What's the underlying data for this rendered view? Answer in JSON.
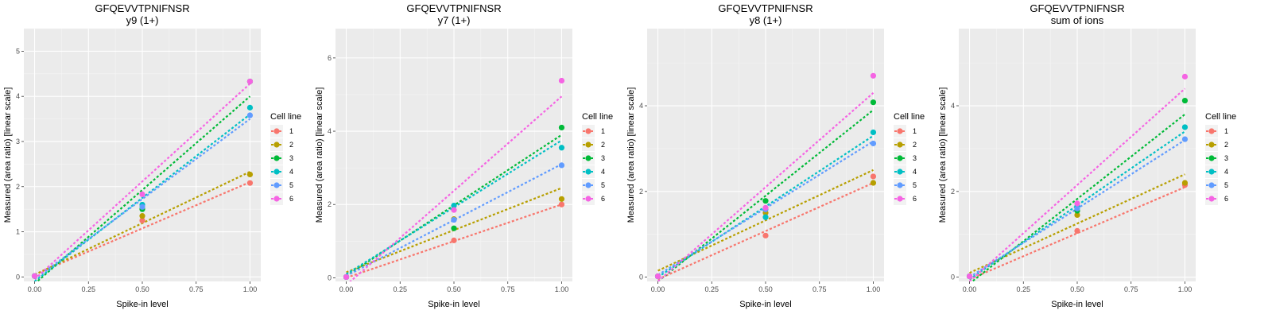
{
  "chart_data": [
    {
      "type": "scatter",
      "title": "GFQEVVTPNIFNSR",
      "subtitle": "y9 (1+)",
      "xlabel": "Spike-in level",
      "ylabel": "Measured (area ratio) [linear scale]",
      "xlim": [
        -0.05,
        1.05
      ],
      "ylim": [
        -0.1,
        5.5
      ],
      "xticks": [
        0,
        0.25,
        0.5,
        0.75,
        1
      ],
      "xtick_labels": [
        "0.00",
        "0.25",
        "0.50",
        "0.75",
        "1.00"
      ],
      "yticks": [
        0,
        1,
        2,
        3,
        4,
        5
      ],
      "ytick_labels": [
        "0",
        "1",
        "2",
        "3",
        "4",
        "5"
      ],
      "legend_title": "Cell line",
      "legend_position": "right",
      "series": [
        {
          "name": "1",
          "color": "#F8766D",
          "points": [
            [
              0,
              0.02
            ],
            [
              0.5,
              1.25
            ],
            [
              1,
              2.08
            ]
          ],
          "fit": [
            0.05,
            2.05
          ]
        },
        {
          "name": "2",
          "color": "#B79F00",
          "points": [
            [
              0,
              0.02
            ],
            [
              0.5,
              1.35
            ],
            [
              1,
              2.27
            ]
          ],
          "fit": [
            0.05,
            2.28
          ]
        },
        {
          "name": "3",
          "color": "#00BA38",
          "points": [
            [
              0,
              0.02
            ],
            [
              0.5,
              1.5
            ],
            [
              1,
              4.33
            ]
          ],
          "fit": [
            -0.15,
            4.15
          ]
        },
        {
          "name": "4",
          "color": "#00BFC4",
          "points": [
            [
              0,
              0.02
            ],
            [
              0.5,
              1.6
            ],
            [
              1,
              3.75
            ]
          ],
          "fit": [
            -0.1,
            3.7
          ]
        },
        {
          "name": "5",
          "color": "#619CFF",
          "points": [
            [
              0,
              0.02
            ],
            [
              0.5,
              1.55
            ],
            [
              1,
              3.58
            ]
          ],
          "fit": [
            -0.05,
            3.55
          ]
        },
        {
          "name": "6",
          "color": "#F564E3",
          "points": [
            [
              0,
              0.02
            ],
            [
              0.5,
              1.83
            ],
            [
              1,
              4.33
            ]
          ],
          "fit": [
            -0.05,
            4.33
          ]
        }
      ]
    },
    {
      "type": "scatter",
      "title": "GFQEVVTPNIFNSR",
      "subtitle": "y7 (1+)",
      "xlabel": "Spike-in level",
      "ylabel": "Measured (area ratio) [linear scale]",
      "xlim": [
        -0.05,
        1.05
      ],
      "ylim": [
        -0.1,
        6.8
      ],
      "xticks": [
        0,
        0.25,
        0.5,
        0.75,
        1
      ],
      "xtick_labels": [
        "0.00",
        "0.25",
        "0.50",
        "0.75",
        "1.00"
      ],
      "yticks": [
        0,
        2,
        4,
        6
      ],
      "ytick_labels": [
        "0",
        "2",
        "4",
        "6"
      ],
      "legend_title": "Cell line",
      "legend_position": "right",
      "series": [
        {
          "name": "1",
          "color": "#F8766D",
          "points": [
            [
              0,
              0.02
            ],
            [
              0.5,
              1.02
            ],
            [
              1,
              2.0
            ]
          ],
          "fit": [
            0.0,
            2.0
          ]
        },
        {
          "name": "2",
          "color": "#B79F00",
          "points": [
            [
              0,
              0.02
            ],
            [
              0.5,
              1.6
            ],
            [
              1,
              2.15
            ]
          ],
          "fit": [
            0.15,
            2.3
          ]
        },
        {
          "name": "3",
          "color": "#00BA38",
          "points": [
            [
              0,
              0.02
            ],
            [
              0.5,
              1.35
            ],
            [
              1,
              4.1
            ]
          ],
          "fit": [
            0.05,
            3.85
          ]
        },
        {
          "name": "4",
          "color": "#00BFC4",
          "points": [
            [
              0,
              0.02
            ],
            [
              0.5,
              1.97
            ],
            [
              1,
              3.55
            ]
          ],
          "fit": [
            0.1,
            3.65
          ]
        },
        {
          "name": "5",
          "color": "#619CFF",
          "points": [
            [
              0,
              0.02
            ],
            [
              0.5,
              1.58
            ],
            [
              1,
              3.07
            ]
          ],
          "fit": [
            0.05,
            3.05
          ]
        },
        {
          "name": "6",
          "color": "#F564E3",
          "points": [
            [
              0,
              0.02
            ],
            [
              0.5,
              1.85
            ],
            [
              1,
              5.38
            ]
          ],
          "fit": [
            -0.2,
            5.15
          ]
        }
      ]
    },
    {
      "type": "scatter",
      "title": "GFQEVVTPNIFNSR",
      "subtitle": "y8 (1+)",
      "xlabel": "Spike-in level",
      "ylabel": "Measured (area ratio) [linear scale]",
      "xlim": [
        -0.05,
        1.05
      ],
      "ylim": [
        -0.1,
        5.8
      ],
      "xticks": [
        0,
        0.25,
        0.5,
        0.75,
        1
      ],
      "xtick_labels": [
        "0.00",
        "0.25",
        "0.50",
        "0.75",
        "1.00"
      ],
      "yticks": [
        0,
        2,
        4
      ],
      "ytick_labels": [
        "0",
        "2",
        "4"
      ],
      "legend_title": "Cell line",
      "legend_position": "right",
      "series": [
        {
          "name": "1",
          "color": "#F8766D",
          "points": [
            [
              0,
              0.02
            ],
            [
              0.5,
              0.97
            ],
            [
              1,
              2.35
            ]
          ],
          "fit": [
            -0.05,
            2.25
          ]
        },
        {
          "name": "2",
          "color": "#B79F00",
          "points": [
            [
              0,
              0.02
            ],
            [
              0.5,
              1.5
            ],
            [
              1,
              2.2
            ]
          ],
          "fit": [
            0.15,
            2.35
          ]
        },
        {
          "name": "3",
          "color": "#00BA38",
          "points": [
            [
              0,
              0.02
            ],
            [
              0.5,
              1.78
            ],
            [
              1,
              4.08
            ]
          ],
          "fit": [
            -0.1,
            4.0
          ]
        },
        {
          "name": "4",
          "color": "#00BFC4",
          "points": [
            [
              0,
              0.02
            ],
            [
              0.5,
              1.4
            ],
            [
              1,
              3.38
            ]
          ],
          "fit": [
            0.0,
            3.3
          ]
        },
        {
          "name": "5",
          "color": "#619CFF",
          "points": [
            [
              0,
              0.02
            ],
            [
              0.5,
              1.58
            ],
            [
              1,
              3.12
            ]
          ],
          "fit": [
            0.05,
            3.12
          ]
        },
        {
          "name": "6",
          "color": "#F564E3",
          "points": [
            [
              0,
              0.02
            ],
            [
              0.5,
              1.62
            ],
            [
              1,
              4.7
            ]
          ],
          "fit": [
            -0.1,
            4.4
          ]
        }
      ]
    },
    {
      "type": "scatter",
      "title": "GFQEVVTPNIFNSR",
      "subtitle": "sum of ions",
      "xlabel": "Spike-in level",
      "ylabel": "Measured (area ratio) [linear scale]",
      "xlim": [
        -0.05,
        1.05
      ],
      "ylim": [
        -0.1,
        5.8
      ],
      "xticks": [
        0,
        0.25,
        0.5,
        0.75,
        1
      ],
      "xtick_labels": [
        "0.00",
        "0.25",
        "0.50",
        "0.75",
        "1.00"
      ],
      "yticks": [
        0,
        2,
        4
      ],
      "ytick_labels": [
        "0",
        "2",
        "4"
      ],
      "legend_title": "Cell line",
      "legend_position": "right",
      "series": [
        {
          "name": "1",
          "color": "#F8766D",
          "points": [
            [
              0,
              0.02
            ],
            [
              0.5,
              1.08
            ],
            [
              1,
              2.15
            ]
          ],
          "fit": [
            -0.05,
            2.15
          ]
        },
        {
          "name": "2",
          "color": "#B79F00",
          "points": [
            [
              0,
              0.02
            ],
            [
              0.5,
              1.45
            ],
            [
              1,
              2.2
            ]
          ],
          "fit": [
            0.1,
            2.3
          ]
        },
        {
          "name": "3",
          "color": "#00BA38",
          "points": [
            [
              0,
              0.02
            ],
            [
              0.5,
              1.55
            ],
            [
              1,
              4.12
            ]
          ],
          "fit": [
            -0.15,
            3.95
          ]
        },
        {
          "name": "4",
          "color": "#00BFC4",
          "points": [
            [
              0,
              0.02
            ],
            [
              0.5,
              1.65
            ],
            [
              1,
              3.5
            ]
          ],
          "fit": [
            -0.05,
            3.45
          ]
        },
        {
          "name": "5",
          "color": "#619CFF",
          "points": [
            [
              0,
              0.02
            ],
            [
              0.5,
              1.6
            ],
            [
              1,
              3.22
            ]
          ],
          "fit": [
            0.0,
            3.2
          ]
        },
        {
          "name": "6",
          "color": "#F564E3",
          "points": [
            [
              0,
              0.02
            ],
            [
              0.5,
              1.72
            ],
            [
              1,
              4.68
            ]
          ],
          "fit": [
            -0.1,
            4.5
          ]
        }
      ]
    }
  ]
}
